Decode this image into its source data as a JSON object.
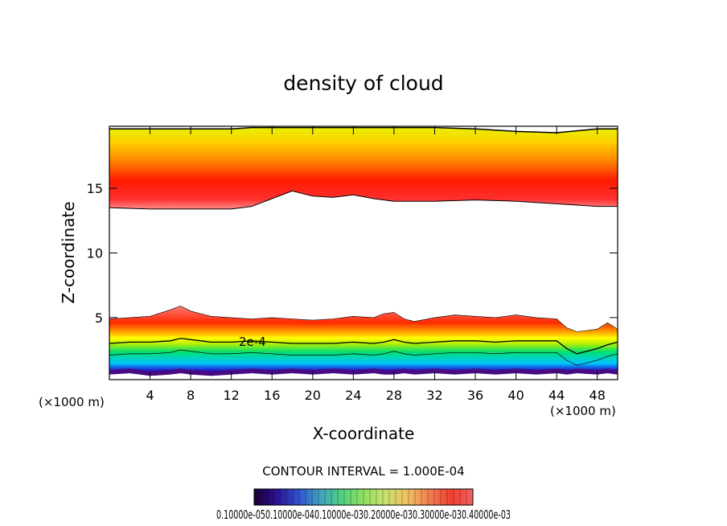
{
  "chart_data": {
    "type": "heatmap",
    "title": "density of cloud",
    "xlabel": "X-coordinate",
    "ylabel": "Z-coordinate",
    "x_unit_left": "(×1000 m)",
    "x_unit_right": "(×1000 m)",
    "xlim": [
      0,
      50
    ],
    "ylim": [
      0.2,
      19.8
    ],
    "x_ticks": [
      4,
      8,
      12,
      16,
      20,
      24,
      28,
      32,
      36,
      40,
      44,
      48
    ],
    "y_ticks": [
      5,
      10,
      15
    ],
    "contour_interval_label": "CONTOUR INTERVAL = 1.000E-04",
    "contour_label": "2e-4",
    "colorbar_labels": "0.10000e-050.10000e-040.10000e-030.20000e-030.30000e-030.40000e-03",
    "colors": {
      "colormap": [
        "#3a0060",
        "#2020d0",
        "#00c8ff",
        "#00e070",
        "#b8f000",
        "#ffff00",
        "#ffaa00",
        "#ff2a00",
        "#ff7a7a"
      ]
    },
    "upper_layer": {
      "x": [
        0,
        4,
        8,
        12,
        14,
        16,
        18,
        20,
        22,
        24,
        26,
        28,
        32,
        36,
        40,
        44,
        48,
        50
      ],
      "bottom": [
        13.5,
        13.4,
        13.4,
        13.4,
        13.6,
        14.2,
        14.8,
        14.4,
        14.3,
        14.5,
        14.2,
        14.0,
        14.0,
        14.1,
        14.0,
        13.8,
        13.6,
        13.6
      ],
      "peak": [
        15.5,
        15.5,
        15.6,
        15.8,
        16.1,
        16.6,
        16.6,
        16.1,
        15.9,
        16.0,
        15.9,
        15.8,
        15.8,
        15.9,
        15.8,
        15.7,
        15.6,
        15.5
      ],
      "top": [
        19.6,
        19.6,
        19.6,
        19.6,
        19.7,
        19.7,
        19.7,
        19.7,
        19.7,
        19.7,
        19.7,
        19.7,
        19.7,
        19.6,
        19.4,
        19.3,
        19.6,
        19.6
      ]
    },
    "lower_layer": {
      "x": [
        0,
        2,
        4,
        6,
        7,
        8,
        10,
        12,
        14,
        16,
        18,
        20,
        22,
        24,
        26,
        27,
        28,
        29,
        30,
        32,
        34,
        36,
        38,
        40,
        42,
        44,
        45,
        46,
        48,
        49,
        50
      ],
      "top": [
        4.9,
        5.0,
        5.1,
        5.6,
        5.9,
        5.5,
        5.1,
        5.0,
        4.9,
        5.0,
        4.9,
        4.8,
        4.9,
        5.1,
        5.0,
        5.3,
        5.4,
        4.9,
        4.7,
        5.0,
        5.2,
        5.1,
        5.0,
        5.2,
        5.0,
        4.9,
        4.2,
        3.9,
        4.1,
        4.6,
        4.1
      ],
      "contour_2e4": [
        3.0,
        3.1,
        3.1,
        3.2,
        3.4,
        3.3,
        3.1,
        3.1,
        3.2,
        3.1,
        3.0,
        3.0,
        3.0,
        3.1,
        3.0,
        3.1,
        3.3,
        3.1,
        3.0,
        3.1,
        3.2,
        3.2,
        3.1,
        3.2,
        3.2,
        3.2,
        2.6,
        2.2,
        2.6,
        2.9,
        3.1
      ],
      "bottom": [
        0.6,
        0.7,
        0.5,
        0.6,
        0.7,
        0.6,
        0.5,
        0.6,
        0.7,
        0.6,
        0.7,
        0.6,
        0.7,
        0.6,
        0.7,
        0.6,
        0.6,
        0.7,
        0.6,
        0.7,
        0.6,
        0.7,
        0.6,
        0.7,
        0.6,
        0.7,
        0.6,
        0.7,
        0.6,
        0.7,
        0.6
      ]
    },
    "colorbar_range": [
      0,
      0.0004
    ]
  }
}
